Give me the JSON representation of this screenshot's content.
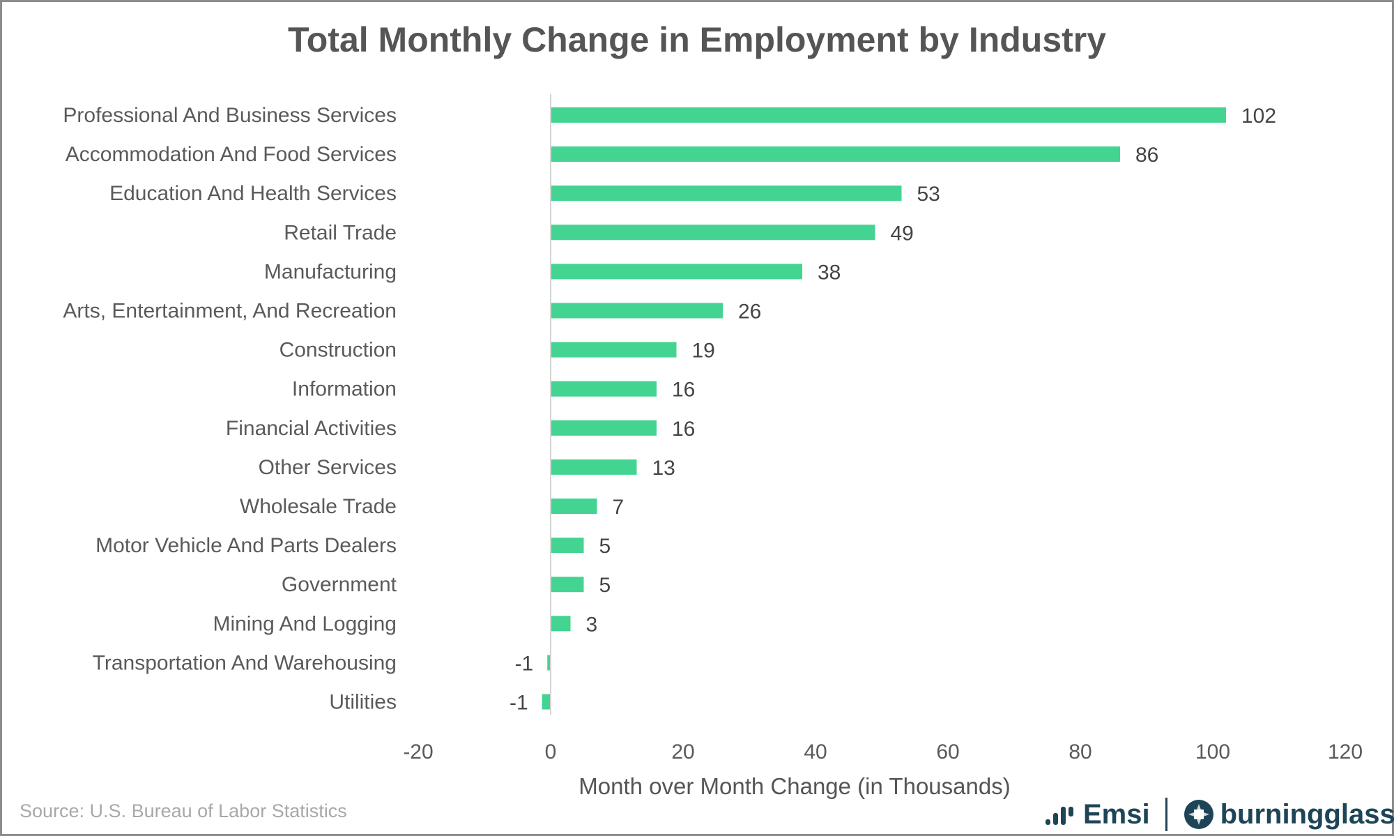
{
  "chart_data": {
    "type": "bar",
    "orientation": "horizontal",
    "title": "Total Monthly Change in Employment by Industry",
    "xlabel": "Month over Month Change (in Thousands)",
    "ylabel": "",
    "xlim": [
      -20,
      120
    ],
    "xticks": [
      -20,
      0,
      20,
      40,
      60,
      80,
      100,
      120
    ],
    "grid": false,
    "legend": "none",
    "bar_color": "#43d492",
    "categories": [
      "Professional And Business Services",
      "Accommodation And Food Services",
      "Education And Health Services",
      "Retail Trade",
      "Manufacturing",
      "Arts, Entertainment, And Recreation",
      "Construction",
      "Information",
      "Financial Activities",
      "Other Services",
      "Wholesale Trade",
      "Motor Vehicle And Parts Dealers",
      "Government",
      "Mining And Logging",
      "Transportation And Warehousing",
      "Utilities"
    ],
    "values": [
      102,
      86,
      53,
      49,
      38,
      26,
      19,
      16,
      16,
      13,
      7,
      5,
      5,
      3,
      -0.5,
      -1.3
    ],
    "data_labels": [
      "102",
      "86",
      "53",
      "49",
      "38",
      "26",
      "19",
      "16",
      "16",
      "13",
      "7",
      "5",
      "5",
      "3",
      "-1",
      "-1"
    ]
  },
  "footer": {
    "source": "Source:  U.S. Bureau of Labor Statistics",
    "logo_emsi": "Emsi",
    "logo_burningglass": "burningglass"
  }
}
